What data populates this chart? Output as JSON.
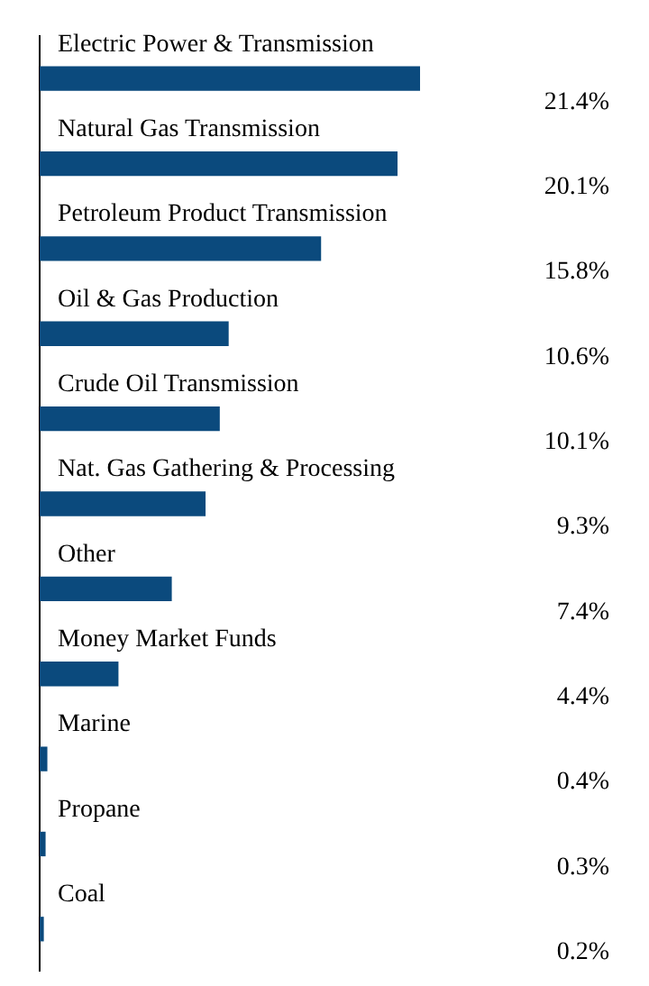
{
  "chart_data": {
    "type": "bar",
    "orientation": "horizontal",
    "categories": [
      "Electric Power & Transmission",
      "Natural Gas Transmission",
      "Petroleum Product Transmission",
      "Oil & Gas Production",
      "Crude Oil Transmission",
      "Nat. Gas Gathering & Processing",
      "Other",
      "Money Market Funds",
      "Marine",
      "Propane",
      "Coal"
    ],
    "values": [
      21.4,
      20.1,
      15.8,
      10.6,
      10.1,
      9.3,
      7.4,
      4.4,
      0.4,
      0.3,
      0.2
    ],
    "value_labels": [
      "21.4%",
      "20.1%",
      "15.8%",
      "10.6%",
      "10.1%",
      "9.3%",
      "7.4%",
      "4.4%",
      "0.4%",
      "0.3%",
      "0.2%"
    ],
    "color": "#0b4a7d",
    "legend": false
  }
}
